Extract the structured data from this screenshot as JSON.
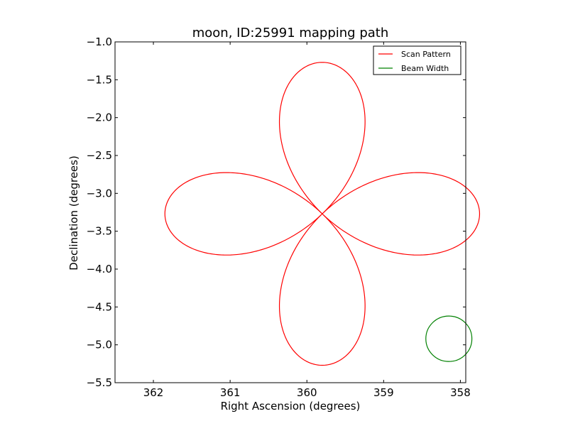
{
  "chart_data": {
    "type": "line",
    "title": "moon, ID:25991 mapping path",
    "xlabel": "Right Ascension (degrees)",
    "ylabel": "Declination (degrees)",
    "xlim": [
      362.5,
      357.93
    ],
    "ylim": [
      -5.5,
      -1.0
    ],
    "x_inverted": true,
    "xticks": [
      362,
      361,
      360,
      359,
      358
    ],
    "xtick_labels": [
      "362",
      "361",
      "360",
      "359",
      "358"
    ],
    "yticks": [
      -1.0,
      -1.5,
      -2.0,
      -2.5,
      -3.0,
      -3.5,
      -4.0,
      -4.5,
      -5.0,
      -5.5
    ],
    "ytick_labels": [
      "−1.0",
      "−1.5",
      "−2.0",
      "−2.5",
      "−3.0",
      "−3.5",
      "−4.0",
      "−4.5",
      "−5.0",
      "−5.5"
    ],
    "grid": false,
    "legend_position": "top-right",
    "series": [
      {
        "name": "Scan Pattern",
        "color": "#ff0000",
        "shape": "four-petal rose curve",
        "center": [
          359.8,
          -3.27
        ],
        "x": [
          359.8,
          360.21,
          360.72,
          361.17,
          361.53,
          361.77,
          361.83,
          361.8,
          361.74,
          361.53,
          361.0,
          360.45,
          360.0,
          359.8,
          359.82,
          359.86,
          359.58,
          359.4,
          359.39,
          359.36,
          359.5,
          359.7,
          359.86,
          359.87,
          359.8,
          359.39,
          358.98,
          358.48,
          358.15,
          357.95,
          357.93,
          358.15,
          358.5,
          359.0,
          359.45,
          359.8,
          359.87,
          359.77,
          359.55,
          360.0,
          360.21,
          360.28,
          360.28,
          360.05,
          359.82,
          359.8
        ],
        "y": [
          -3.27,
          -3.0,
          -2.78,
          -2.73,
          -2.8,
          -3.05,
          -3.28,
          -3.3,
          -3.47,
          -3.66,
          -3.81,
          -3.75,
          -3.55,
          -3.27,
          -3.05,
          -2.7,
          -2.25,
          -1.9,
          -1.6,
          -1.35,
          -1.27,
          -1.45,
          -2.0,
          -2.7,
          -3.27,
          -2.95,
          -2.78,
          -2.72,
          -2.8,
          -3.05,
          -3.3,
          -3.55,
          -3.78,
          -3.78,
          -3.58,
          -3.27,
          -3.6,
          -4.1,
          -4.5,
          -4.85,
          -5.1,
          -5.25,
          -5.27,
          -5.28,
          -4.9,
          -3.27
        ]
      },
      {
        "name": "Beam Width",
        "color": "#008000",
        "shape": "circle",
        "center": [
          358.15,
          -4.92
        ],
        "radius": 0.3
      }
    ]
  }
}
